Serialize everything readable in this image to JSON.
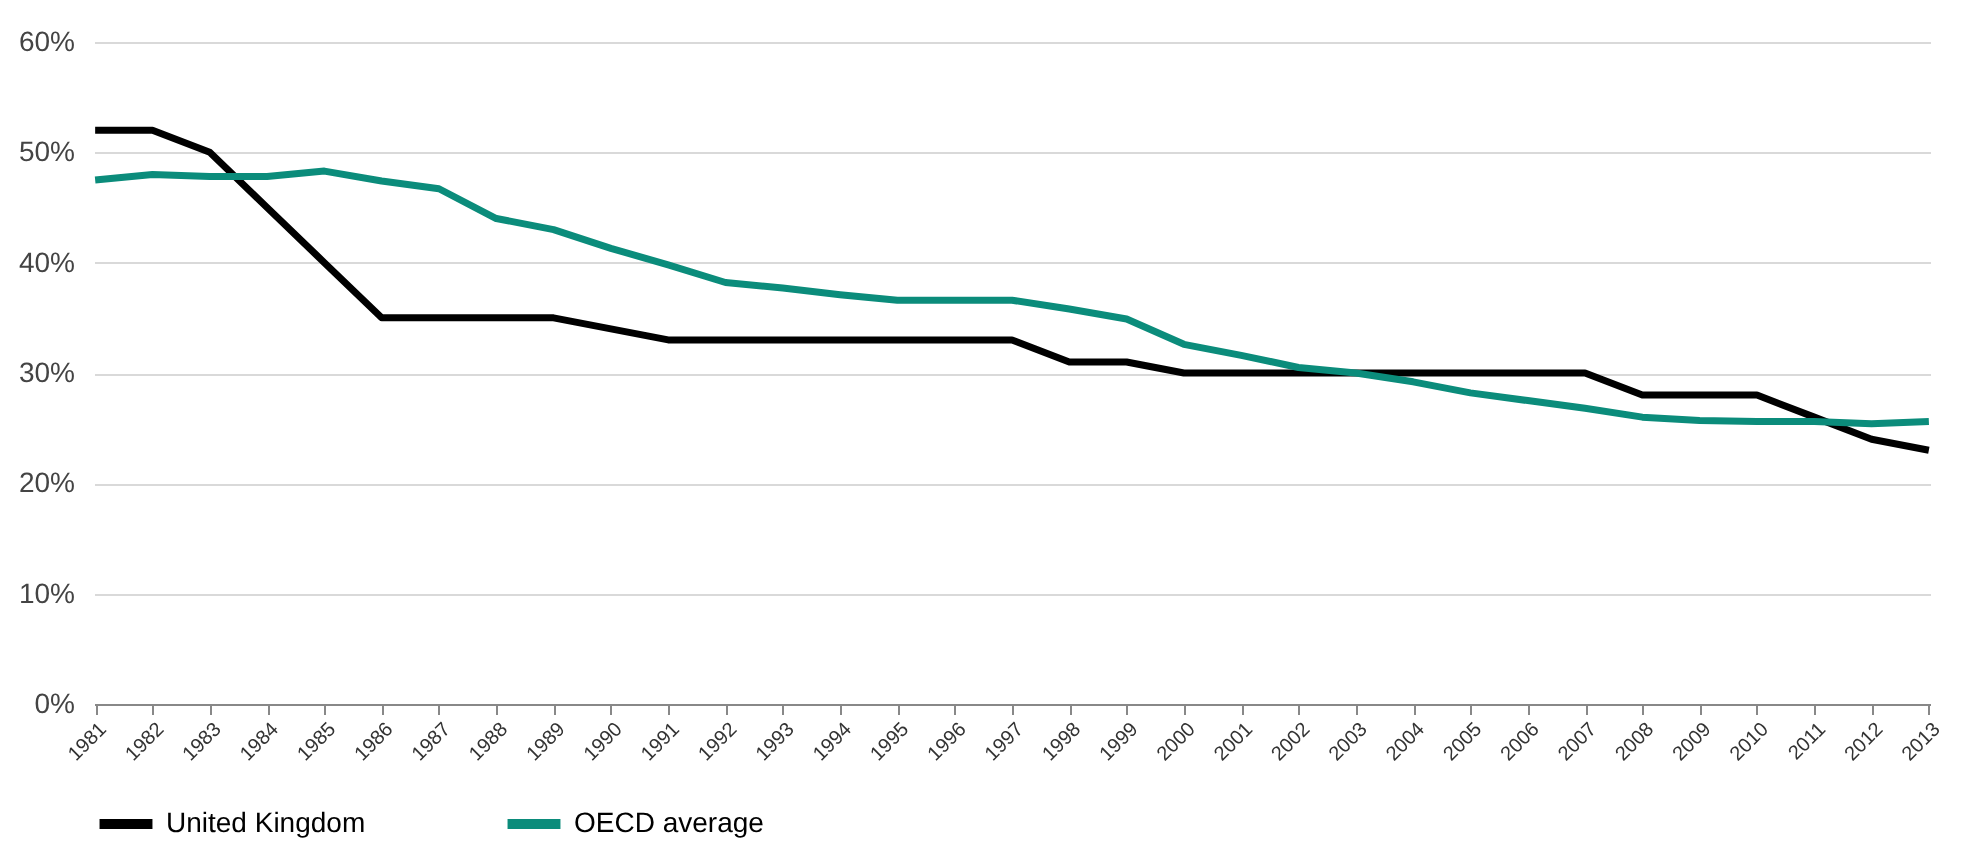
{
  "chart_data": {
    "type": "line",
    "categories": [
      "1981",
      "1982",
      "1983",
      "1984",
      "1985",
      "1986",
      "1987",
      "1988",
      "1989",
      "1990",
      "1991",
      "1992",
      "1993",
      "1994",
      "1995",
      "1996",
      "1997",
      "1998",
      "1999",
      "2000",
      "2001",
      "2002",
      "2003",
      "2004",
      "2005",
      "2006",
      "2007",
      "2008",
      "2009",
      "2010",
      "2011",
      "2012",
      "2013"
    ],
    "series": [
      {
        "name": "United Kingdom",
        "color": "#000000",
        "values": [
          52,
          52,
          50,
          45,
          40,
          35,
          35,
          35,
          35,
          34,
          33,
          33,
          33,
          33,
          33,
          33,
          33,
          31,
          31,
          30,
          30,
          30,
          30,
          30,
          30,
          30,
          30,
          28,
          28,
          28,
          26,
          24,
          23
        ]
      },
      {
        "name": "OECD average",
        "color": "#0b8c7b",
        "values": [
          47.5,
          48,
          47.8,
          47.8,
          48.3,
          47.4,
          46.7,
          44,
          43,
          41.3,
          39.8,
          38.2,
          37.7,
          37.1,
          36.6,
          36.6,
          36.6,
          35.8,
          34.9,
          32.6,
          31.6,
          30.5,
          30,
          29.2,
          28.2,
          27.5,
          26.8,
          26,
          25.7,
          25.6,
          25.6,
          25.4,
          25.6
        ]
      }
    ],
    "ylim": [
      0,
      60
    ],
    "yticks": [
      {
        "value": 0,
        "label": "0%"
      },
      {
        "value": 10,
        "label": "10%"
      },
      {
        "value": 20,
        "label": "20%"
      },
      {
        "value": 30,
        "label": "30%"
      },
      {
        "value": 40,
        "label": "40%"
      },
      {
        "value": 50,
        "label": "50%"
      },
      {
        "value": 60,
        "label": "60%"
      }
    ],
    "grid": "y",
    "legend": "bottom",
    "marker": "none",
    "line_style": "solid"
  }
}
